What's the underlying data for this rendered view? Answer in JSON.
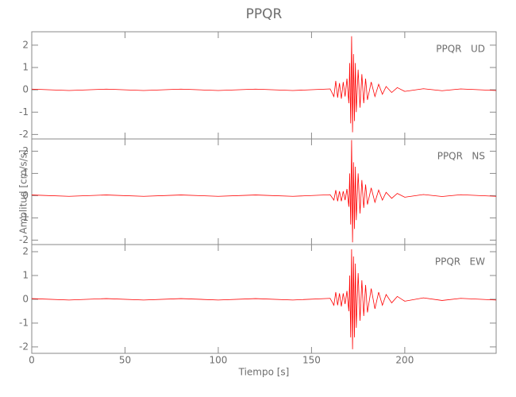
{
  "chart_data": [
    {
      "type": "line",
      "title": "PPQR",
      "annotation": "PPQR   UD",
      "color": "#ff0000",
      "xlim": [
        0,
        249
      ],
      "xticks": [
        0,
        50,
        100,
        150,
        200
      ],
      "ylim": [
        -2.2,
        2.6
      ],
      "yticks": [
        -2,
        -1,
        0,
        1,
        2
      ],
      "x": [
        0,
        20,
        40,
        60,
        80,
        100,
        120,
        140,
        160,
        162,
        163,
        164,
        165,
        166,
        167,
        168,
        169,
        170,
        170.5,
        171,
        171.5,
        172,
        172.5,
        173,
        173.5,
        174,
        175,
        176,
        177,
        178,
        179,
        180,
        182,
        184,
        186,
        188,
        190,
        193,
        196,
        200,
        210,
        220,
        230,
        249
      ],
      "values": [
        0.03,
        -0.03,
        0.03,
        -0.03,
        0.03,
        -0.03,
        0.03,
        -0.03,
        0.04,
        -0.3,
        0.4,
        -0.35,
        0.3,
        -0.4,
        0.35,
        -0.3,
        0.5,
        -0.6,
        1.2,
        -1.5,
        2.4,
        -1.9,
        1.6,
        -1.4,
        1.2,
        -1.0,
        0.9,
        -0.8,
        0.7,
        -0.6,
        0.5,
        -0.45,
        0.35,
        -0.3,
        0.25,
        -0.2,
        0.15,
        -0.12,
        0.1,
        -0.07,
        0.05,
        -0.04,
        0.04,
        -0.03
      ]
    },
    {
      "type": "line",
      "y_label": "Amplitud [cm/s/s]",
      "annotation": "PPQR   NS",
      "color": "#ff0000",
      "xlim": [
        0,
        249
      ],
      "xticks": [
        0,
        50,
        100,
        150,
        200
      ],
      "ylim": [
        -2.2,
        2.55
      ],
      "yticks": [
        -2,
        -1,
        0,
        1,
        2
      ],
      "x": [
        0,
        20,
        40,
        60,
        80,
        100,
        120,
        140,
        160,
        162,
        163,
        164,
        165,
        166,
        167,
        168,
        169,
        170,
        170.5,
        171,
        171.5,
        172,
        172.5,
        173,
        173.5,
        174,
        175,
        176,
        177,
        178,
        179,
        180,
        182,
        184,
        186,
        188,
        190,
        193,
        196,
        200,
        210,
        220,
        230,
        249
      ],
      "values": [
        0.03,
        -0.03,
        0.03,
        -0.03,
        0.03,
        -0.03,
        0.03,
        -0.03,
        0.04,
        -0.2,
        0.25,
        -0.25,
        0.2,
        -0.25,
        0.2,
        -0.2,
        0.3,
        -0.5,
        1.0,
        -1.3,
        2.5,
        -2.1,
        1.5,
        -1.5,
        1.3,
        -1.1,
        1.0,
        -0.8,
        0.7,
        -0.55,
        0.5,
        -0.4,
        0.35,
        -0.3,
        0.25,
        -0.2,
        0.15,
        -0.12,
        0.1,
        -0.07,
        0.05,
        -0.04,
        0.04,
        -0.03
      ]
    },
    {
      "type": "line",
      "x_label": "Tiempo [s]",
      "annotation": "PPQR   EW",
      "color": "#ff0000",
      "xlim": [
        0,
        249
      ],
      "xticks": [
        0,
        50,
        100,
        150,
        200
      ],
      "ylim": [
        -2.27,
        2.3
      ],
      "yticks": [
        -2,
        -1,
        0,
        1,
        2
      ],
      "x": [
        0,
        20,
        40,
        60,
        80,
        100,
        120,
        140,
        160,
        162,
        163,
        164,
        165,
        166,
        167,
        168,
        169,
        170,
        170.5,
        171,
        171.5,
        172,
        172.5,
        173,
        173.5,
        174,
        175,
        176,
        177,
        178,
        179,
        180,
        182,
        184,
        186,
        188,
        190,
        193,
        196,
        200,
        210,
        220,
        230,
        249
      ],
      "values": [
        0.03,
        -0.03,
        0.03,
        -0.03,
        0.03,
        -0.03,
        0.03,
        -0.03,
        0.04,
        -0.25,
        0.3,
        -0.25,
        0.25,
        -0.3,
        0.25,
        -0.2,
        0.35,
        -0.5,
        1.0,
        -1.6,
        2.1,
        -2.1,
        1.8,
        -1.6,
        1.5,
        -1.2,
        1.1,
        -0.9,
        0.8,
        -0.7,
        0.6,
        -0.55,
        0.45,
        -0.4,
        0.3,
        -0.25,
        0.2,
        -0.15,
        0.12,
        -0.08,
        0.06,
        -0.05,
        0.04,
        -0.03
      ]
    }
  ]
}
